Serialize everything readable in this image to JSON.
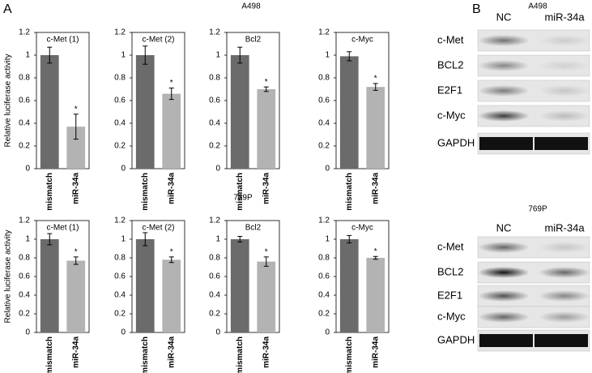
{
  "figure": {
    "panel_a": "A",
    "panel_b": "B",
    "rows": [
      "A498",
      "769P"
    ]
  },
  "chart_data": [
    {
      "type": "bar",
      "title": "c-Met (1)",
      "ylabel": "Relative luciferase activity",
      "categories": [
        "mismatch",
        "miR-34a"
      ],
      "values": [
        1.0,
        0.37
      ],
      "errors": [
        0.07,
        0.11
      ],
      "colors": [
        "#6b6b6b",
        "#b3b3b3"
      ],
      "annotation": "*",
      "ylim": [
        0,
        1.2
      ],
      "yticks": [
        0,
        0.2,
        0.4,
        0.6,
        0.8,
        1,
        1.2
      ]
    },
    {
      "type": "bar",
      "title": "c-Met (2)",
      "categories": [
        "mismatch",
        "miR-34a"
      ],
      "values": [
        1.0,
        0.66
      ],
      "errors": [
        0.08,
        0.05
      ],
      "colors": [
        "#6b6b6b",
        "#b3b3b3"
      ],
      "annotation": "*",
      "ylim": [
        0,
        1.2
      ],
      "yticks": [
        0,
        0.2,
        0.4,
        0.6,
        0.8,
        1,
        1.2
      ]
    },
    {
      "type": "bar",
      "title": "Bcl2",
      "categories": [
        "mismatch",
        "miR-34a"
      ],
      "values": [
        1.0,
        0.7
      ],
      "errors": [
        0.07,
        0.02
      ],
      "colors": [
        "#6b6b6b",
        "#b3b3b3"
      ],
      "annotation": "*",
      "ylim": [
        0,
        1.2
      ],
      "yticks": [
        0,
        0.2,
        0.4,
        0.6,
        0.8,
        1,
        1.2
      ]
    },
    {
      "type": "bar",
      "title": "c-Myc",
      "categories": [
        "mismatch",
        "miR-34a"
      ],
      "values": [
        0.99,
        0.72
      ],
      "errors": [
        0.04,
        0.03
      ],
      "colors": [
        "#6b6b6b",
        "#b3b3b3"
      ],
      "annotation": "*",
      "ylim": [
        0,
        1.2
      ],
      "yticks": [
        0,
        0.2,
        0.4,
        0.6,
        0.8,
        1,
        1.2
      ]
    },
    {
      "type": "bar",
      "title": "c-Met (1)",
      "ylabel": "Relative luciferase activity",
      "categories": [
        "mismatch",
        "miR-34a"
      ],
      "values": [
        1.0,
        0.77
      ],
      "errors": [
        0.06,
        0.04
      ],
      "colors": [
        "#6b6b6b",
        "#b3b3b3"
      ],
      "annotation": "*",
      "ylim": [
        0,
        1.2
      ],
      "yticks": [
        0,
        0.2,
        0.4,
        0.6,
        0.8,
        1,
        1.2
      ]
    },
    {
      "type": "bar",
      "title": "c-Met (2)",
      "categories": [
        "mismatch",
        "miR-34a"
      ],
      "values": [
        1.0,
        0.78
      ],
      "errors": [
        0.07,
        0.03
      ],
      "colors": [
        "#6b6b6b",
        "#b3b3b3"
      ],
      "annotation": "*",
      "ylim": [
        0,
        1.2
      ],
      "yticks": [
        0,
        0.2,
        0.4,
        0.6,
        0.8,
        1,
        1.2
      ]
    },
    {
      "type": "bar",
      "title": "Bcl2",
      "categories": [
        "mismatch",
        "miR-34a"
      ],
      "values": [
        1.0,
        0.76
      ],
      "errors": [
        0.03,
        0.05
      ],
      "colors": [
        "#6b6b6b",
        "#b3b3b3"
      ],
      "annotation": "*",
      "ylim": [
        0,
        1.2
      ],
      "yticks": [
        0,
        0.2,
        0.4,
        0.6,
        0.8,
        1,
        1.2
      ]
    },
    {
      "type": "bar",
      "title": "c-Myc",
      "categories": [
        "mismatch",
        "miR-34a"
      ],
      "values": [
        1.0,
        0.8
      ],
      "errors": [
        0.04,
        0.015
      ],
      "colors": [
        "#6b6b6b",
        "#b3b3b3"
      ],
      "annotation": "*",
      "ylim": [
        0,
        1.2
      ],
      "yticks": [
        0,
        0.2,
        0.4,
        0.6,
        0.8,
        1,
        1.2
      ]
    }
  ],
  "blots": [
    {
      "title": "A498",
      "lanes": [
        "NC",
        "miR-34a"
      ],
      "proteins": [
        "c-Met",
        "BCL2",
        "E2F1",
        "c-Myc",
        "GAPDH"
      ]
    },
    {
      "title": "769P",
      "lanes": [
        "NC",
        "miR-34a"
      ],
      "proteins": [
        "c-Met",
        "BCL2",
        "E2F1",
        "c-Myc",
        "GAPDH"
      ]
    }
  ]
}
